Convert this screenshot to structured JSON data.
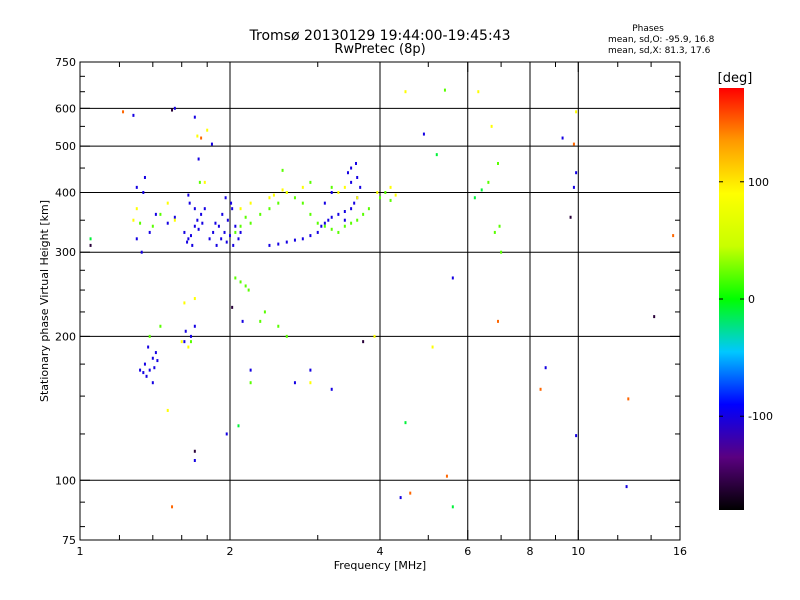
{
  "chart_data": {
    "type": "scatter",
    "title": "Tromsø 20130129 19:44:00-19:45:43",
    "subtitle": "RwPretec (8p)",
    "stats": {
      "heading": "Phases",
      "line_o": "mean, sd,O: -95.9, 16.8",
      "line_x": "mean, sd,X:  81.3, 17.6"
    },
    "xlabel": "Frequency [MHz]",
    "ylabel": "Stationary phase Virtual Height [km]",
    "x_scale": "log",
    "y_scale": "log",
    "xlim": [
      1,
      16
    ],
    "ylim": [
      75,
      750
    ],
    "x_ticks": [
      1,
      2,
      4,
      6,
      8,
      10,
      16
    ],
    "x_tick_labels": [
      "1",
      "2",
      "4",
      "6",
      "8",
      "10",
      "16"
    ],
    "x_minor_ticks": [
      1.2,
      1.4,
      1.6,
      1.8,
      3,
      5,
      7,
      9,
      12,
      14
    ],
    "x_grid": [
      2,
      4,
      6,
      8,
      10
    ],
    "y_ticks": [
      75,
      100,
      200,
      300,
      400,
      500,
      600,
      750
    ],
    "y_tick_labels": [
      "75",
      "100",
      "200",
      "300",
      "400",
      "500",
      "600",
      "750"
    ],
    "y_minor_ticks": [
      80,
      90,
      125,
      150,
      175,
      225,
      250,
      275,
      350,
      450,
      550,
      650,
      700
    ],
    "y_grid": [
      100,
      200,
      300,
      400,
      500,
      600
    ],
    "grid": true,
    "colorbar": {
      "label": "[deg]",
      "min": -180,
      "max": 180,
      "ticks": [
        100,
        0,
        -100
      ],
      "tick_labels": [
        "100",
        "0",
        "-100"
      ],
      "colors": [
        "#000000",
        "#5a0080",
        "#0000ff",
        "#00c8ff",
        "#00ff00",
        "#c8ff00",
        "#ffff00",
        "#ff9900",
        "#ff0000"
      ]
    },
    "series": [
      {
        "phase_deg": -100,
        "points": [
          [
            1.3,
            320
          ],
          [
            1.42,
            360
          ],
          [
            1.38,
            330
          ],
          [
            1.33,
            300
          ],
          [
            1.35,
            175
          ],
          [
            1.38,
            170
          ],
          [
            1.4,
            180
          ],
          [
            1.42,
            185
          ],
          [
            1.36,
            165
          ],
          [
            1.4,
            160
          ],
          [
            1.32,
            170
          ],
          [
            1.37,
            190
          ],
          [
            1.41,
            172
          ],
          [
            1.43,
            178
          ],
          [
            1.34,
            168
          ],
          [
            1.62,
            330
          ],
          [
            1.65,
            320
          ],
          [
            1.68,
            310
          ],
          [
            1.7,
            340
          ],
          [
            1.72,
            350
          ],
          [
            1.75,
            360
          ],
          [
            1.78,
            370
          ],
          [
            1.64,
            315
          ],
          [
            1.67,
            325
          ],
          [
            1.73,
            335
          ],
          [
            1.76,
            345
          ],
          [
            1.82,
            320
          ],
          [
            1.85,
            330
          ],
          [
            1.88,
            310
          ],
          [
            1.9,
            340
          ],
          [
            1.92,
            320
          ],
          [
            1.95,
            330
          ],
          [
            1.97,
            315
          ],
          [
            2,
            325
          ],
          [
            2.03,
            310
          ],
          [
            2.05,
            340
          ],
          [
            2.08,
            320
          ],
          [
            2.1,
            330
          ],
          [
            1.98,
            350
          ],
          [
            1.93,
            360
          ],
          [
            1.87,
            345
          ],
          [
            2.02,
            370
          ],
          [
            1.96,
            390
          ],
          [
            2.01,
            380
          ],
          [
            1.66,
            380
          ],
          [
            1.7,
            370
          ],
          [
            1.65,
            395
          ],
          [
            1.63,
            205
          ],
          [
            1.62,
            195
          ],
          [
            1.67,
            200
          ],
          [
            1.7,
            210
          ],
          [
            2.4,
            310
          ],
          [
            2.5,
            312
          ],
          [
            2.6,
            315
          ],
          [
            2.7,
            318
          ],
          [
            2.8,
            320
          ],
          [
            2.9,
            325
          ],
          [
            3,
            330
          ],
          [
            3.05,
            340
          ],
          [
            3.1,
            345
          ],
          [
            3.15,
            350
          ],
          [
            3.2,
            355
          ],
          [
            3.3,
            360
          ],
          [
            3.4,
            365
          ],
          [
            3.5,
            370
          ],
          [
            3.55,
            380
          ],
          [
            3.6,
            390
          ],
          [
            3.65,
            410
          ],
          [
            3.5,
            420
          ],
          [
            3.6,
            430
          ],
          [
            3.1,
            380
          ],
          [
            3.2,
            400
          ],
          [
            3.4,
            350
          ],
          [
            3.45,
            440
          ],
          [
            3.5,
            450
          ],
          [
            3.58,
            460
          ],
          [
            1.55,
            355
          ],
          [
            1.5,
            345
          ],
          [
            1.3,
            410
          ],
          [
            1.35,
            430
          ],
          [
            1.34,
            400
          ],
          [
            1.7,
            575
          ],
          [
            1.28,
            580
          ],
          [
            1.55,
            600
          ],
          [
            1.73,
            470
          ],
          [
            1.84,
            505
          ],
          [
            2.12,
            215
          ],
          [
            2.2,
            170
          ],
          [
            2.7,
            160
          ],
          [
            2.9,
            170
          ],
          [
            3.2,
            155
          ],
          [
            1.97,
            125
          ],
          [
            1.7,
            110
          ],
          [
            4.4,
            92
          ],
          [
            5.6,
            265
          ],
          [
            9.3,
            520
          ],
          [
            9.9,
            440
          ],
          [
            9.8,
            410
          ],
          [
            12.5,
            97
          ],
          [
            9.9,
            124
          ],
          [
            8.6,
            172
          ],
          [
            4.9,
            530
          ]
        ]
      },
      {
        "phase_deg": 20,
        "points": [
          [
            1.4,
            340
          ],
          [
            1.45,
            360
          ],
          [
            1.32,
            345
          ],
          [
            1.38,
            200
          ],
          [
            1.45,
            210
          ],
          [
            1.67,
            195
          ],
          [
            1.74,
            420
          ],
          [
            2.05,
            330
          ],
          [
            2.1,
            340
          ],
          [
            2.15,
            355
          ],
          [
            2.2,
            345
          ],
          [
            2.3,
            360
          ],
          [
            2.4,
            370
          ],
          [
            2.5,
            380
          ],
          [
            2.6,
            400
          ],
          [
            2.7,
            390
          ],
          [
            2.8,
            380
          ],
          [
            2.9,
            360
          ],
          [
            3,
            345
          ],
          [
            3.1,
            340
          ],
          [
            3.2,
            335
          ],
          [
            3.3,
            330
          ],
          [
            3.4,
            340
          ],
          [
            3.5,
            345
          ],
          [
            3.6,
            350
          ],
          [
            3.7,
            360
          ],
          [
            3.8,
            370
          ],
          [
            4,
            390
          ],
          [
            4.1,
            400
          ],
          [
            4.2,
            385
          ],
          [
            2.05,
            265
          ],
          [
            2.1,
            260
          ],
          [
            2.15,
            255
          ],
          [
            2.18,
            250
          ],
          [
            2.3,
            215
          ],
          [
            2.5,
            210
          ],
          [
            2.6,
            200
          ],
          [
            2.35,
            225
          ],
          [
            2.2,
            160
          ],
          [
            6.9,
            460
          ],
          [
            6.6,
            420
          ],
          [
            6.95,
            340
          ],
          [
            6.8,
            330
          ],
          [
            7.0,
            300
          ],
          [
            5.4,
            655
          ],
          [
            2.55,
            445
          ],
          [
            2.9,
            420
          ],
          [
            3.2,
            410
          ]
        ]
      },
      {
        "phase_deg": 90,
        "points": [
          [
            1.28,
            350
          ],
          [
            1.3,
            370
          ],
          [
            1.6,
            195
          ],
          [
            1.65,
            190
          ],
          [
            1.7,
            240
          ],
          [
            1.62,
            235
          ],
          [
            1.78,
            420
          ],
          [
            1.8,
            540
          ],
          [
            1.72,
            525
          ],
          [
            2.1,
            370
          ],
          [
            2.2,
            380
          ],
          [
            2.4,
            390
          ],
          [
            2.6,
            400
          ],
          [
            2.8,
            410
          ],
          [
            3.3,
            400
          ],
          [
            3.4,
            410
          ],
          [
            3.6,
            390
          ],
          [
            3.9,
            200
          ],
          [
            5.1,
            190
          ],
          [
            4.5,
            650
          ],
          [
            6.3,
            650
          ],
          [
            6.7,
            550
          ],
          [
            1.5,
            140
          ],
          [
            3.95,
            400
          ],
          [
            4.2,
            410
          ],
          [
            2.9,
            160
          ],
          [
            9.9,
            590
          ],
          [
            1.55,
            350
          ],
          [
            1.5,
            380
          ],
          [
            4.3,
            395
          ],
          [
            2.45,
            395
          ],
          [
            2.55,
            405
          ]
        ]
      },
      {
        "phase_deg": 150,
        "points": [
          [
            1.22,
            590
          ],
          [
            1.53,
            88
          ],
          [
            1.75,
            520
          ],
          [
            4.6,
            94
          ],
          [
            5.45,
            102
          ],
          [
            6.9,
            215
          ],
          [
            12.6,
            148
          ],
          [
            15.5,
            325
          ],
          [
            9.8,
            505
          ],
          [
            8.4,
            155
          ]
        ]
      },
      {
        "phase_deg": -10,
        "points": [
          [
            1.05,
            320
          ],
          [
            2.08,
            130
          ],
          [
            4.5,
            132
          ],
          [
            5.2,
            480
          ],
          [
            5.6,
            88
          ],
          [
            6.4,
            405
          ],
          [
            6.2,
            390
          ]
        ]
      },
      {
        "phase_deg": -160,
        "points": [
          [
            1.05,
            310
          ],
          [
            2.02,
            230
          ],
          [
            14.2,
            220
          ],
          [
            3.7,
            195
          ],
          [
            1.7,
            115
          ],
          [
            9.65,
            355
          ],
          [
            1.53,
            595
          ]
        ]
      }
    ]
  }
}
